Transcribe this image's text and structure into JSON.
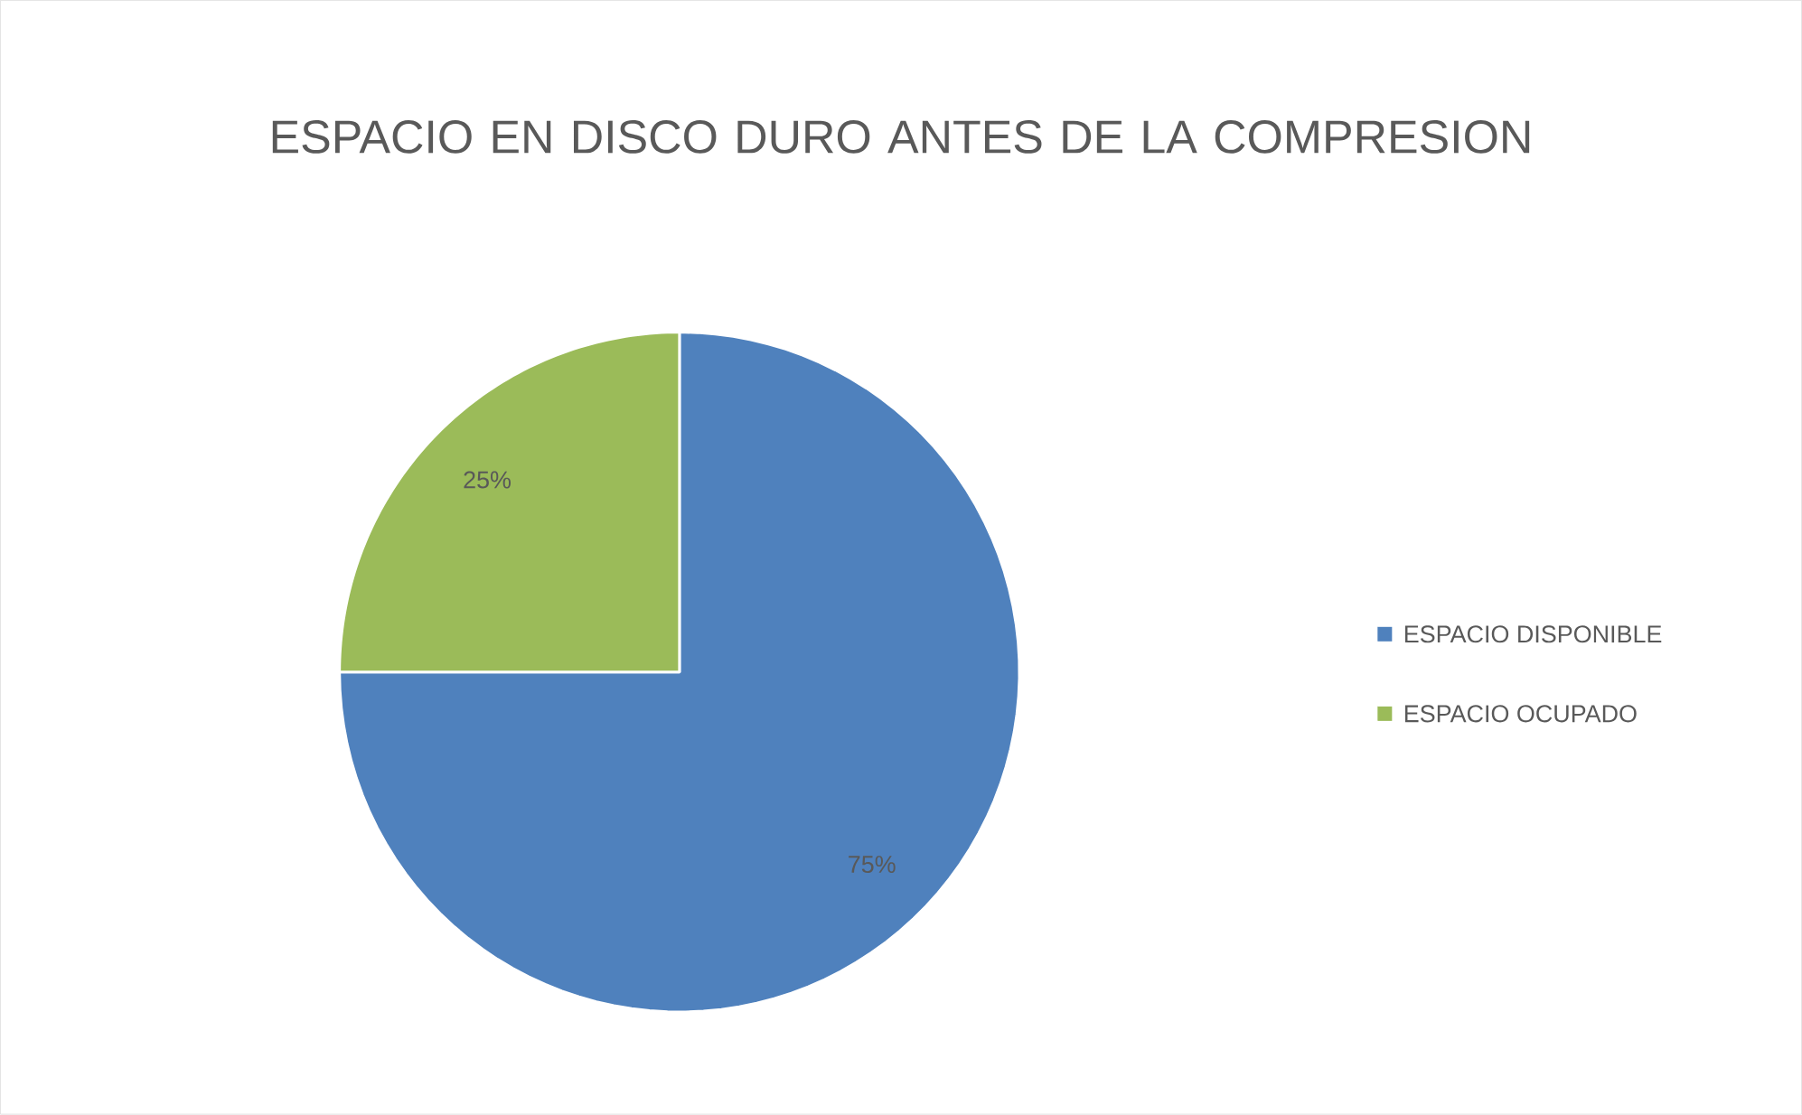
{
  "chart_data": {
    "type": "pie",
    "title": "ESPACIO EN DISCO DURO ANTES DE LA COMPRESION",
    "categories": [
      "ESPACIO DISPONIBLE",
      "ESPACIO OCUPADO"
    ],
    "values": [
      75,
      25
    ],
    "colors": [
      "#4f81bd",
      "#9bbb59"
    ],
    "value_labels": [
      "75%",
      "25%"
    ],
    "legend": "right"
  }
}
